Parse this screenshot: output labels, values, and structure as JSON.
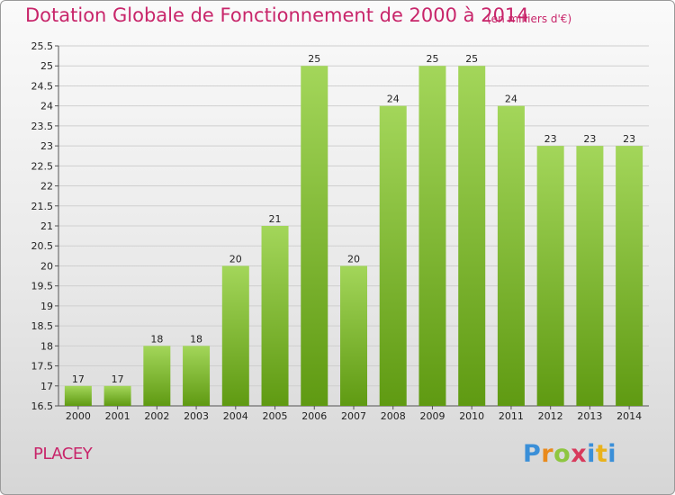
{
  "header": {
    "title": "Dotation Globale de Fonctionnement de 2000 à 2014",
    "subtitle": "(en milliers d'€)"
  },
  "footer": {
    "place": "PLACEY",
    "logo_letters": [
      "P",
      "r",
      "o",
      "x",
      "i",
      "t",
      "i"
    ]
  },
  "colors": {
    "title": "#c8256a",
    "bar_top": "#a3d65a",
    "bar_bottom": "#5f9a12",
    "grid": "#cfcfcf"
  },
  "chart_data": {
    "type": "bar",
    "title": "Dotation Globale de Fonctionnement de 2000 à 2014",
    "subtitle": "(en milliers d'€)",
    "xlabel": "",
    "ylabel": "",
    "categories": [
      "2000",
      "2001",
      "2002",
      "2003",
      "2004",
      "2005",
      "2006",
      "2007",
      "2008",
      "2009",
      "2010",
      "2011",
      "2012",
      "2013",
      "2014"
    ],
    "values": [
      17,
      17,
      18,
      18,
      20,
      21,
      25,
      20,
      24,
      25,
      25,
      24,
      23,
      23,
      23
    ],
    "data_labels": [
      "17",
      "17",
      "18",
      "18",
      "20",
      "21",
      "25",
      "20",
      "24",
      "25",
      "25",
      "24",
      "23",
      "23",
      "23"
    ],
    "ylim": [
      16.5,
      25.5
    ],
    "yticks": [
      "16.5",
      "17",
      "17.5",
      "18",
      "18.5",
      "19",
      "19.5",
      "20",
      "20.5",
      "21",
      "21.5",
      "22",
      "22.5",
      "23",
      "23.5",
      "24",
      "24.5",
      "25",
      "25.5"
    ],
    "grid": true,
    "legend": "none"
  }
}
